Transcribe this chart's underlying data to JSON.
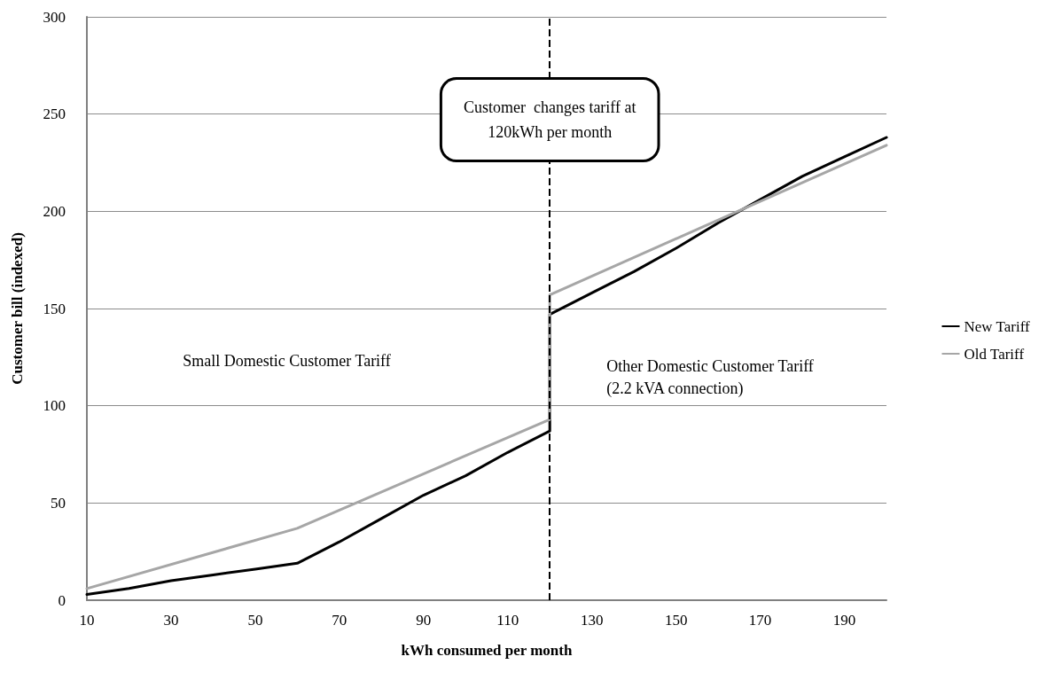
{
  "chart_data": {
    "type": "line",
    "xlabel": "kWh consumed per month",
    "ylabel": "Customer bill (indexed)",
    "xlim": [
      10,
      200
    ],
    "xticks": [
      10,
      30,
      50,
      70,
      90,
      110,
      130,
      150,
      170,
      190
    ],
    "ylim": [
      0,
      300
    ],
    "yticks": [
      0,
      50,
      100,
      150,
      200,
      250,
      300
    ],
    "grid": "y",
    "legend": "right",
    "marker": "none",
    "line_style": "solid",
    "series": [
      {
        "name": "New Tariff",
        "color": "#000000",
        "x": [
          10,
          20,
          30,
          40,
          50,
          60,
          70,
          80,
          90,
          100,
          110,
          120,
          120,
          130,
          140,
          150,
          160,
          170,
          180,
          190,
          200
        ],
        "values": [
          3,
          6,
          10,
          13,
          16,
          19,
          30,
          42,
          54,
          64,
          76,
          87,
          147,
          158,
          169,
          181,
          194,
          206,
          218,
          228,
          238
        ]
      },
      {
        "name": "Old Tariff",
        "color": "#a6a6a6",
        "x": [
          10,
          60,
          120,
          120,
          200
        ],
        "values": [
          6,
          37,
          93,
          157,
          234
        ]
      }
    ],
    "ref_lines": [
      {
        "axis": "x",
        "value": 120,
        "label": "Customer  changes tariff at\n120kWh per month",
        "color": "#000000",
        "line_style": "dashed"
      }
    ],
    "annotations": [
      "Small Domestic Customer Tariff",
      "Other Domestic Customer Tariff\n(2.2 kVA connection)"
    ]
  }
}
